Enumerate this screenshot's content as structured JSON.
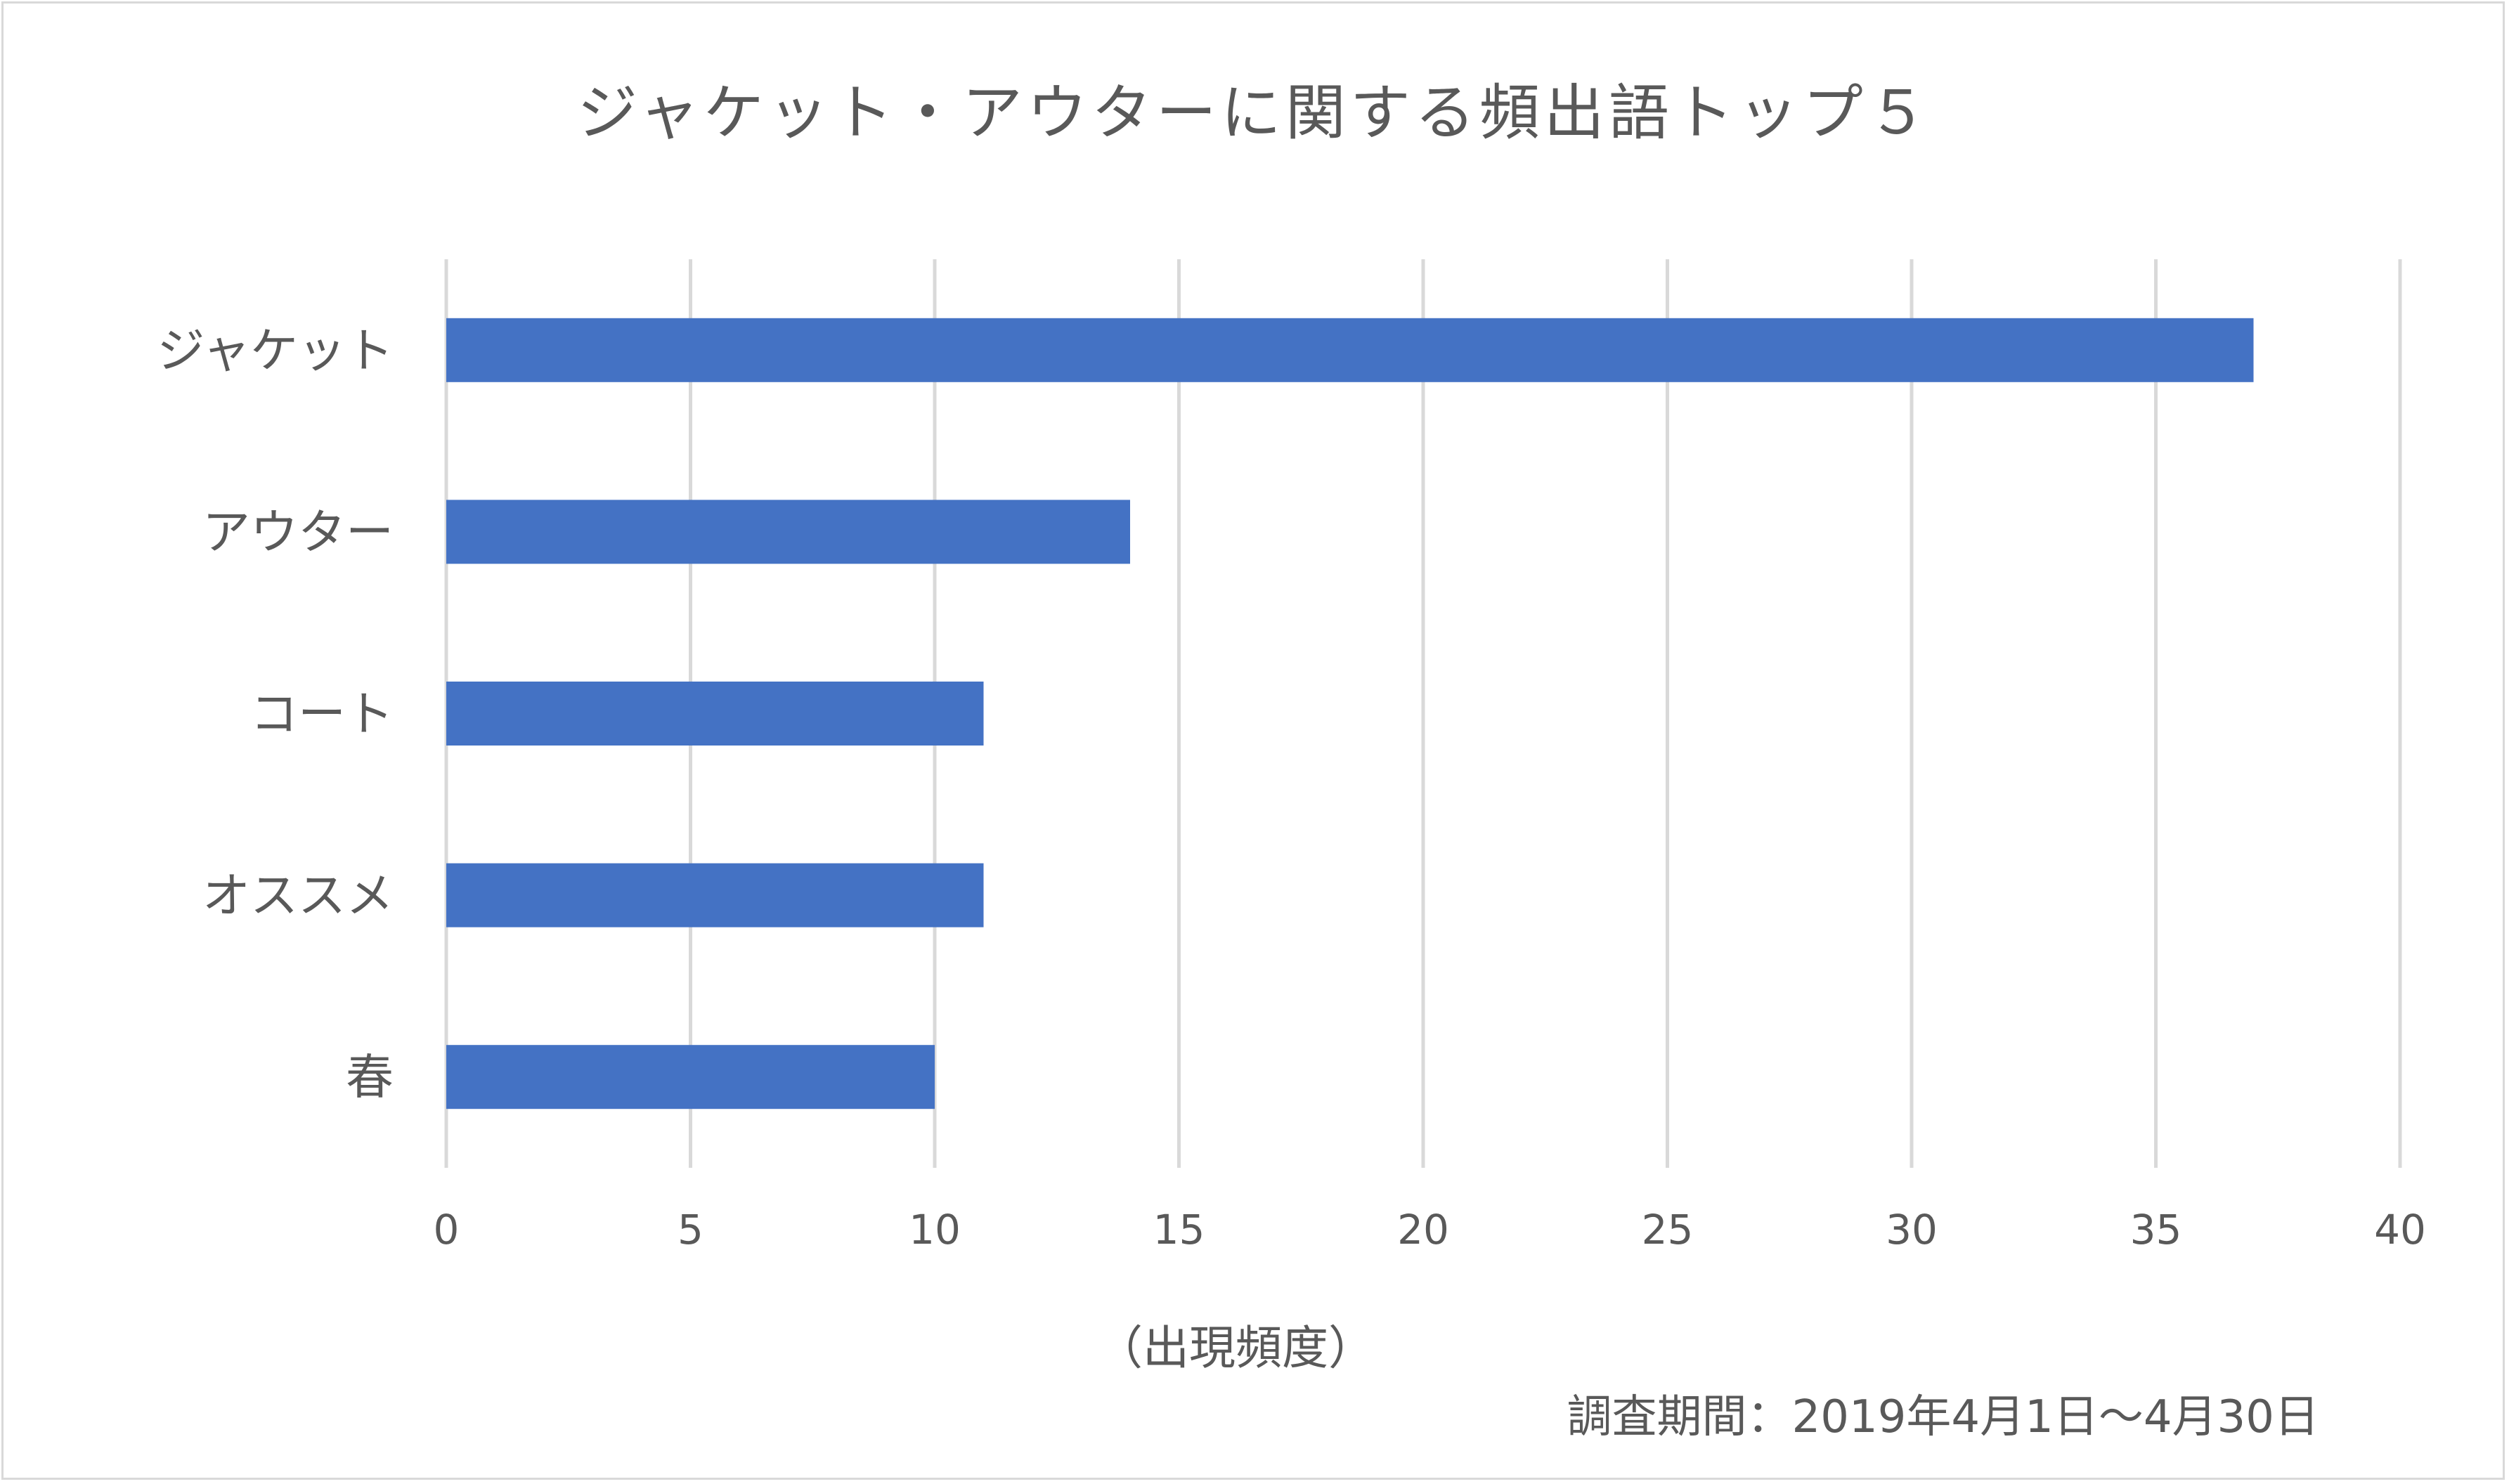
{
  "chart_data": {
    "type": "bar",
    "orientation": "horizontal",
    "title": "ジャケット・アウターに関する頻出語トップ５",
    "categories": [
      "ジャケット",
      "アウター",
      "コート",
      "オススメ",
      "春"
    ],
    "values": [
      37,
      14,
      11,
      11,
      10
    ],
    "xlabel": "（出現頻度）",
    "ylabel": "",
    "xlim": [
      0,
      40
    ],
    "xticks": [
      0,
      5,
      10,
      15,
      20,
      25,
      30,
      35,
      40
    ],
    "grid": true,
    "bar_color": "#4472C4",
    "annotation": "調査期間：2019年4月1日～4月30日"
  }
}
